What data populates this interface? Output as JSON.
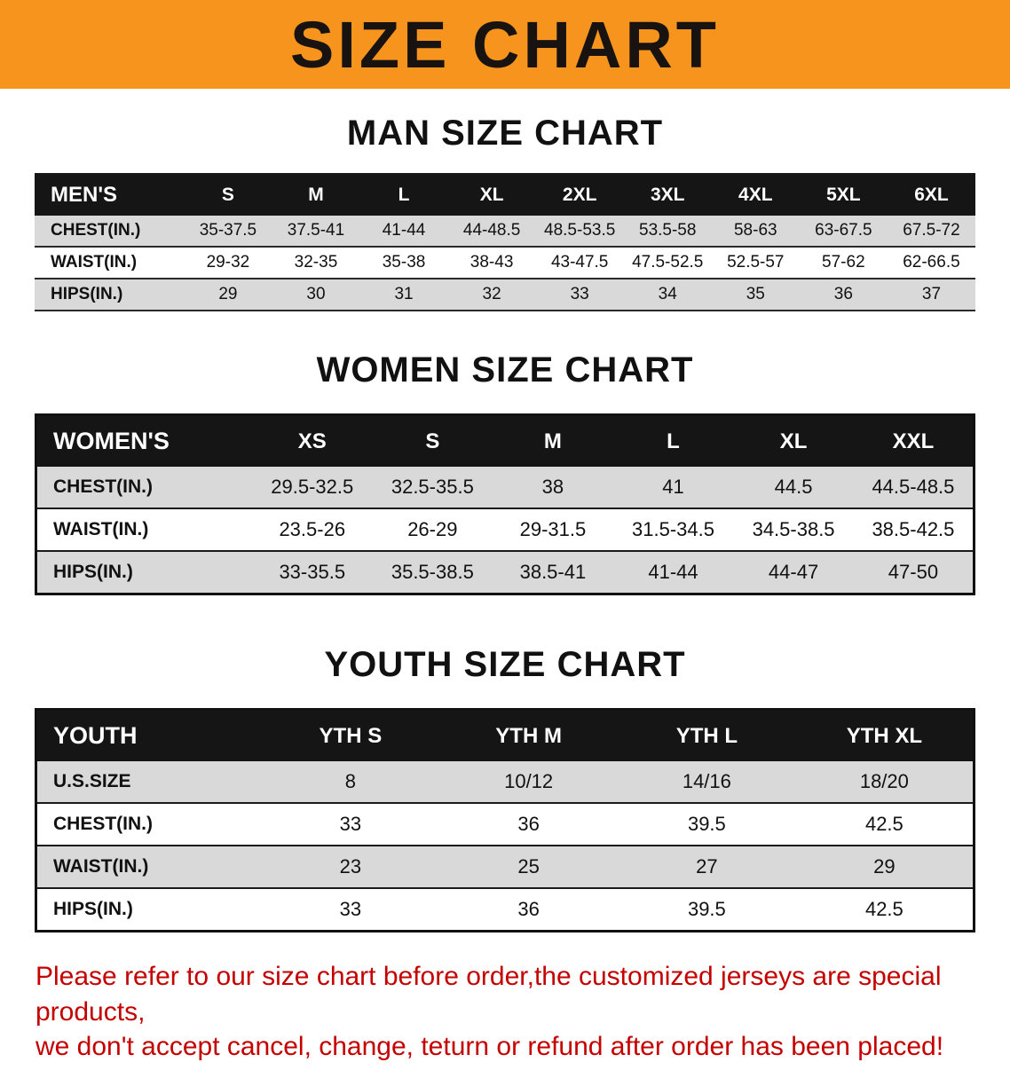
{
  "banner": {
    "title": "SIZE CHART"
  },
  "colors": {
    "banner_bg": "#f7941d",
    "header_bg": "#151515",
    "row_gray": "#d9d9d9",
    "footer_red": "#c40000"
  },
  "sections": {
    "men": {
      "heading": "MAN SIZE CHART",
      "table": {
        "header": [
          "MEN'S",
          "S",
          "M",
          "L",
          "XL",
          "2XL",
          "3XL",
          "4XL",
          "5XL",
          "6XL"
        ],
        "rows": [
          {
            "label": "CHEST(IN.)",
            "values": [
              "35-37.5",
              "37.5-41",
              "41-44",
              "44-48.5",
              "48.5-53.5",
              "53.5-58",
              "58-63",
              "63-67.5",
              "67.5-72"
            ]
          },
          {
            "label": "WAIST(IN.)",
            "values": [
              "29-32",
              "32-35",
              "35-38",
              "38-43",
              "43-47.5",
              "47.5-52.5",
              "52.5-57",
              "57-62",
              "62-66.5"
            ]
          },
          {
            "label": "HIPS(IN.)",
            "values": [
              "29",
              "30",
              "31",
              "32",
              "33",
              "34",
              "35",
              "36",
              "37"
            ]
          }
        ]
      }
    },
    "women": {
      "heading": "WOMEN SIZE CHART",
      "table": {
        "header": [
          "WOMEN'S",
          "XS",
          "S",
          "M",
          "L",
          "XL",
          "XXL"
        ],
        "rows": [
          {
            "label": "CHEST(IN.)",
            "values": [
              "29.5-32.5",
              "32.5-35.5",
              "38",
              "41",
              "44.5",
              "44.5-48.5"
            ]
          },
          {
            "label": "WAIST(IN.)",
            "values": [
              "23.5-26",
              "26-29",
              "29-31.5",
              "31.5-34.5",
              "34.5-38.5",
              "38.5-42.5"
            ]
          },
          {
            "label": "HIPS(IN.)",
            "values": [
              "33-35.5",
              "35.5-38.5",
              "38.5-41",
              "41-44",
              "44-47",
              "47-50"
            ]
          }
        ]
      }
    },
    "youth": {
      "heading": "YOUTH SIZE CHART",
      "table": {
        "header": [
          "YOUTH",
          "YTH S",
          "YTH M",
          "YTH L",
          "YTH XL"
        ],
        "rows": [
          {
            "label": "U.S.SIZE",
            "values": [
              "8",
              "10/12",
              "14/16",
              "18/20"
            ]
          },
          {
            "label": "CHEST(IN.)",
            "values": [
              "33",
              "36",
              "39.5",
              "42.5"
            ]
          },
          {
            "label": "WAIST(IN.)",
            "values": [
              "23",
              "25",
              "27",
              "29"
            ]
          },
          {
            "label": "HIPS(IN.)",
            "values": [
              "33",
              "36",
              "39.5",
              "42.5"
            ]
          }
        ]
      }
    }
  },
  "footer": {
    "line1": "Please refer to our size chart before order,the customized jerseys are special products,",
    "line2": "we don't accept cancel, change, teturn or refund after order has been placed!"
  }
}
